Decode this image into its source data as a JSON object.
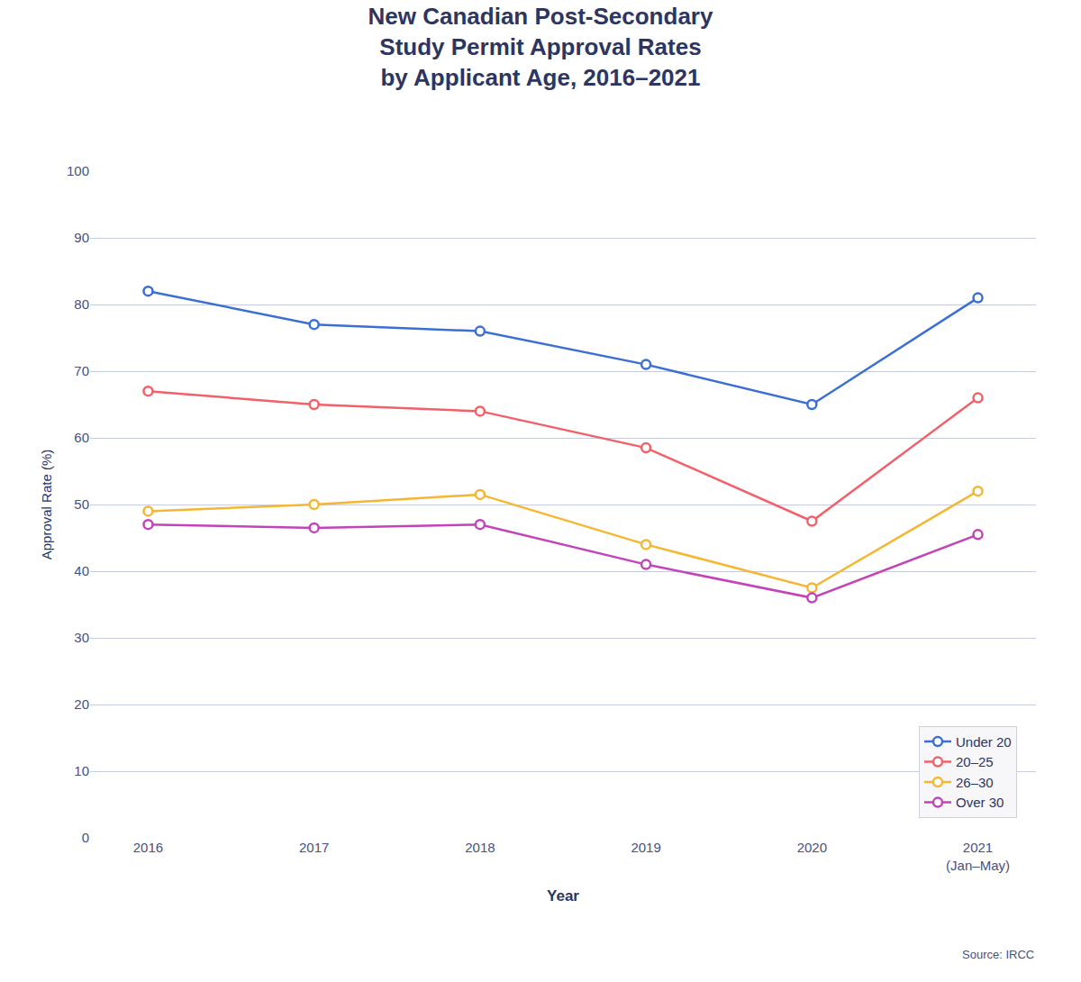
{
  "chart_data": {
    "type": "line",
    "title": "New Canadian Post-Secondary\nStudy Permit Approval Rates\nby Applicant Age, 2016–2021",
    "x_label": "Year",
    "y_label": "Approval Rate (%)",
    "annotations": [
      "Source: IRCC"
    ],
    "categories": [
      "2016",
      "2017",
      "2018",
      "2019",
      "2020",
      "2021\n(Jan–May)"
    ],
    "series": [
      {
        "name": "Under 20",
        "color": "#3B6FD4",
        "values": [
          82,
          77,
          76,
          71,
          65,
          81
        ]
      },
      {
        "name": "20–25",
        "color": "#F2616A",
        "values": [
          67,
          65,
          64,
          58.5,
          47.5,
          66
        ]
      },
      {
        "name": "26–30",
        "color": "#F5B731",
        "values": [
          49,
          50,
          51.5,
          44,
          37.5,
          52
        ]
      },
      {
        "name": "Over 30",
        "color": "#C244B8",
        "values": [
          47,
          46.5,
          47,
          41,
          36,
          45.5
        ]
      }
    ],
    "ylim": [
      0,
      100
    ],
    "yticks": [
      0,
      10,
      20,
      30,
      40,
      50,
      60,
      70,
      80,
      90,
      100
    ],
    "grid": true,
    "legend": "lower right",
    "marker": "circle",
    "line_style": "solid"
  }
}
